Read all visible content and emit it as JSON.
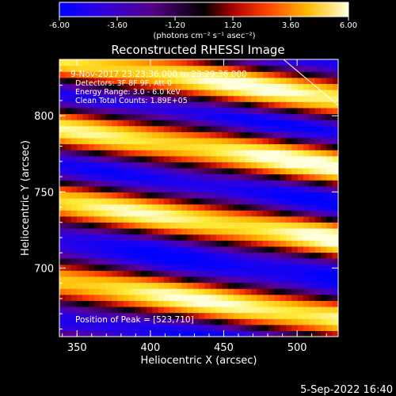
{
  "chart_data": {
    "type": "heatmap",
    "title": "Reconstructed RHESSI Image",
    "xlabel": "Heliocentric X (arcsec)",
    "ylabel": "Heliocentric Y (arcsec)",
    "xlim": [
      338,
      528
    ],
    "ylim": [
      655,
      837
    ],
    "xticks": [
      350,
      400,
      450,
      500
    ],
    "yticks": [
      700,
      750,
      800
    ],
    "annotations": [
      "9-Nov-2017 23:23:36.000 to 23:29:36.000",
      "Detectors: 3F 8F 9F, Att 0",
      "Energy Range: 3.0 - 6.0 keV",
      "Clean    Total Counts: 1.89E+05"
    ],
    "peak_label": "Position of Peak = [523,710]",
    "peak": [
      523,
      710
    ],
    "colorbar": {
      "range": [
        -6.0,
        6.0
      ],
      "ticks": [
        "-6.00",
        "-3.60",
        "-1.20",
        "1.20",
        "3.60",
        "6.00"
      ],
      "label": "(photons cm⁻² s⁻¹ asec⁻²)",
      "colors": [
        "#0000ff",
        "#5500cc",
        "#440066",
        "#000000",
        "#bb0000",
        "#ff5500",
        "#ffcc00",
        "#ffffcc"
      ]
    },
    "fringe_model": {
      "bright_band_y_at_x350": [
        690,
        742,
        790,
        835
      ],
      "slope_arcsec_per_arcsec": -0.13,
      "period_arcsec": 50
    }
  },
  "footer": {
    "date": "5-Sep-2022 16:40"
  }
}
